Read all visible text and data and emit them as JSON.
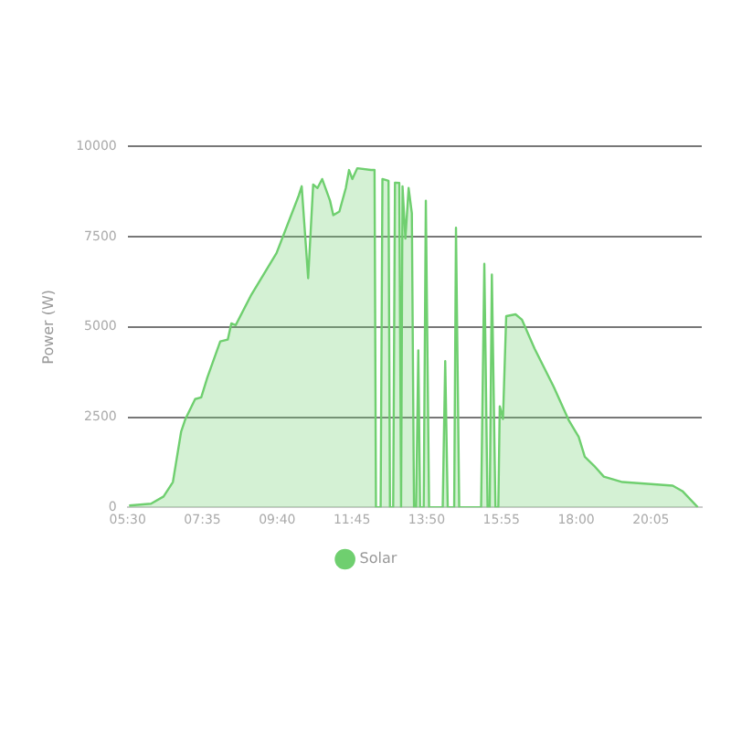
{
  "chart_data": {
    "type": "area",
    "ylabel": "Power (W)",
    "legend": "bottom",
    "grid": "y",
    "marker": "none",
    "line_style": "solid",
    "x": [
      5.54,
      6.15,
      6.5,
      6.76,
      6.99,
      7.11,
      7.38,
      7.55,
      7.72,
      8.08,
      8.29,
      8.39,
      8.51,
      8.95,
      9.65,
      10.27,
      10.35,
      10.53,
      10.67,
      10.79,
      10.92,
      11.14,
      11.23,
      11.4,
      11.58,
      11.67,
      11.76,
      11.9,
      12.28,
      12.38,
      12.42,
      12.55,
      12.6,
      12.77,
      12.81,
      12.9,
      12.95,
      13.07,
      13.12,
      13.16,
      13.24,
      13.33,
      13.42,
      13.48,
      13.54,
      13.6,
      13.65,
      13.75,
      13.81,
      13.9,
      14.28,
      14.35,
      14.42,
      14.6,
      14.65,
      14.74,
      15.35,
      15.44,
      15.53,
      15.59,
      15.65,
      15.75,
      15.83,
      15.87,
      15.96,
      16.05,
      16.31,
      16.49,
      16.84,
      17.37,
      17.8,
      18.07,
      18.24,
      18.5,
      18.77,
      19.29,
      20.69,
      20.96,
      21.39
    ],
    "series": [
      {
        "name": "Solar",
        "color": "#6fcf6f",
        "values": [
          50,
          100,
          300,
          700,
          2100,
          2450,
          3000,
          3050,
          3600,
          4600,
          4650,
          5100,
          5050,
          5900,
          7050,
          8650,
          8900,
          6350,
          8950,
          8850,
          9100,
          8500,
          8100,
          8200,
          8850,
          9350,
          9100,
          9400,
          9350,
          9350,
          0,
          0,
          9100,
          9050,
          0,
          0,
          9000,
          8990,
          0,
          8900,
          7450,
          8850,
          8150,
          0,
          0,
          4350,
          0,
          0,
          8500,
          0,
          0,
          4050,
          0,
          0,
          7750,
          0,
          0,
          6750,
          0,
          0,
          6450,
          0,
          0,
          2800,
          2450,
          5300,
          5350,
          5200,
          4400,
          3350,
          2400,
          1950,
          1400,
          1150,
          850,
          700,
          600,
          450,
          0
        ]
      }
    ],
    "xlim": [
      5.5,
      21.5
    ],
    "xticks": [
      {
        "value": 5.5,
        "label": "05:30"
      },
      {
        "value": 7.5833,
        "label": "07:35"
      },
      {
        "value": 9.6667,
        "label": "09:40"
      },
      {
        "value": 11.75,
        "label": "11:45"
      },
      {
        "value": 13.8333,
        "label": "13:50"
      },
      {
        "value": 15.9167,
        "label": "15:55"
      },
      {
        "value": 18,
        "label": "18:00"
      },
      {
        "value": 20.0833,
        "label": "20:05"
      }
    ],
    "ylim": [
      0,
      10000
    ],
    "yticks": [
      0,
      2500,
      5000,
      7500,
      10000
    ]
  }
}
